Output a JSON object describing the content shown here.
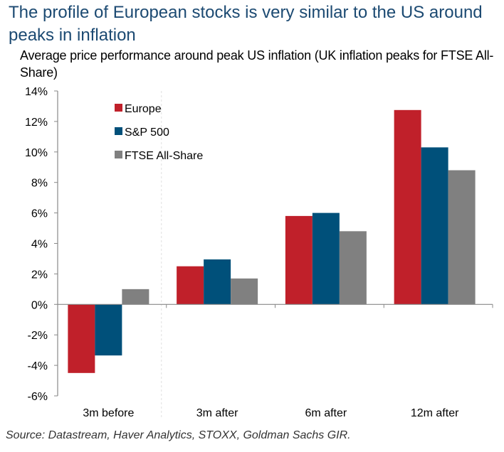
{
  "header": {
    "title": "The profile of European stocks is very similar to the US around peaks in inflation",
    "subtitle": "Average price performance around peak US inflation (UK inflation peaks for FTSE All-Share)"
  },
  "footer": {
    "source": "Source: Datastream, Haver Analytics, STOXX, Goldman Sachs GIR."
  },
  "chart_data": {
    "type": "bar",
    "title": "The profile of European stocks is very similar to the US around peaks in inflation",
    "subtitle": "Average price performance around peak US inflation (UK inflation peaks for FTSE All-Share)",
    "xlabel": "",
    "ylabel": "",
    "categories": [
      "3m before",
      "3m after",
      "6m after",
      "12m after"
    ],
    "series": [
      {
        "name": "Europe",
        "color": "#c0202a",
        "values": [
          -4.5,
          2.5,
          5.8,
          12.75
        ]
      },
      {
        "name": "S&P 500",
        "color": "#00507a",
        "values": [
          -3.35,
          2.95,
          6.0,
          10.3
        ]
      },
      {
        "name": "FTSE All-Share",
        "color": "#808080",
        "values": [
          1.0,
          1.7,
          4.8,
          8.8
        ]
      }
    ],
    "ylim": [
      -6,
      14
    ],
    "yticks": [
      14,
      12,
      10,
      8,
      6,
      4,
      2,
      0,
      -2,
      -4,
      -6
    ],
    "ytick_format": "percent",
    "grid": false,
    "legend": "top-left",
    "annotations": [
      "dashed vertical divider between '3m before' and '3m after'"
    ]
  }
}
